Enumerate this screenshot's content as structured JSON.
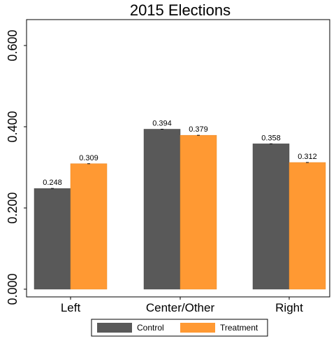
{
  "chart_data": {
    "type": "bar",
    "title": "2015 Elections",
    "xlabel": "",
    "ylabel": "",
    "categories": [
      "Left",
      "Center/Other",
      "Right"
    ],
    "series": [
      {
        "name": "Control",
        "values": [
          0.248,
          0.394,
          0.358
        ],
        "color": "#595959"
      },
      {
        "name": "Treatment",
        "values": [
          0.309,
          0.379,
          0.312
        ],
        "color": "#FF9933"
      }
    ],
    "value_labels": [
      [
        "0.248",
        "0.394",
        "0.358"
      ],
      [
        "0.309",
        "0.379",
        "0.312"
      ]
    ],
    "yticks": [
      0.0,
      0.2,
      0.4,
      0.6
    ],
    "ytick_labels": [
      "0.000",
      "0.200",
      "0.400",
      "0.600"
    ],
    "ylim": [
      0,
      0.66
    ],
    "grid": false,
    "legend": "bottom"
  }
}
